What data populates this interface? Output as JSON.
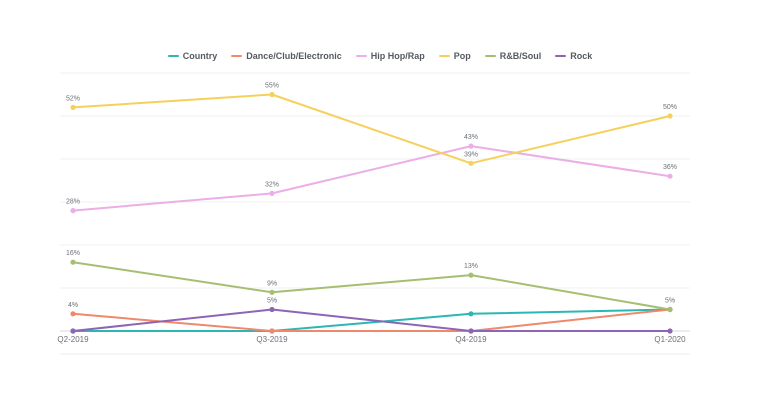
{
  "chart_data": {
    "type": "line",
    "categories": [
      "Q2-2019",
      "Q3-2019",
      "Q4-2019",
      "Q1-2020"
    ],
    "ylim": [
      0,
      60
    ],
    "grid": true,
    "legend_position": "top-center",
    "series": [
      {
        "name": "Country",
        "color": "#2bb7b3",
        "values": [
          0,
          0,
          4,
          5
        ],
        "labels": [
          "",
          "",
          "",
          ""
        ]
      },
      {
        "name": "Dance/Club/Electronic",
        "color": "#f0886a",
        "values": [
          4,
          0,
          0,
          5
        ],
        "labels": [
          "4%",
          "",
          "",
          "5%"
        ]
      },
      {
        "name": "Hip Hop/Rap",
        "color": "#ebaee6",
        "values": [
          28,
          32,
          43,
          36
        ],
        "labels": [
          "28%",
          "32%",
          "43%",
          "36%"
        ]
      },
      {
        "name": "Pop",
        "color": "#f5d15c",
        "values": [
          52,
          55,
          39,
          50
        ],
        "labels": [
          "52%",
          "55%",
          "39%",
          "50%"
        ]
      },
      {
        "name": "R&B/Soul",
        "color": "#a5bf72",
        "values": [
          16,
          9,
          13,
          5
        ],
        "labels": [
          "16%",
          "9%",
          "13%",
          ""
        ]
      },
      {
        "name": "Rock",
        "color": "#8e64b4",
        "values": [
          0,
          5,
          0,
          0
        ],
        "labels": [
          "",
          "5%",
          "",
          ""
        ]
      }
    ]
  }
}
